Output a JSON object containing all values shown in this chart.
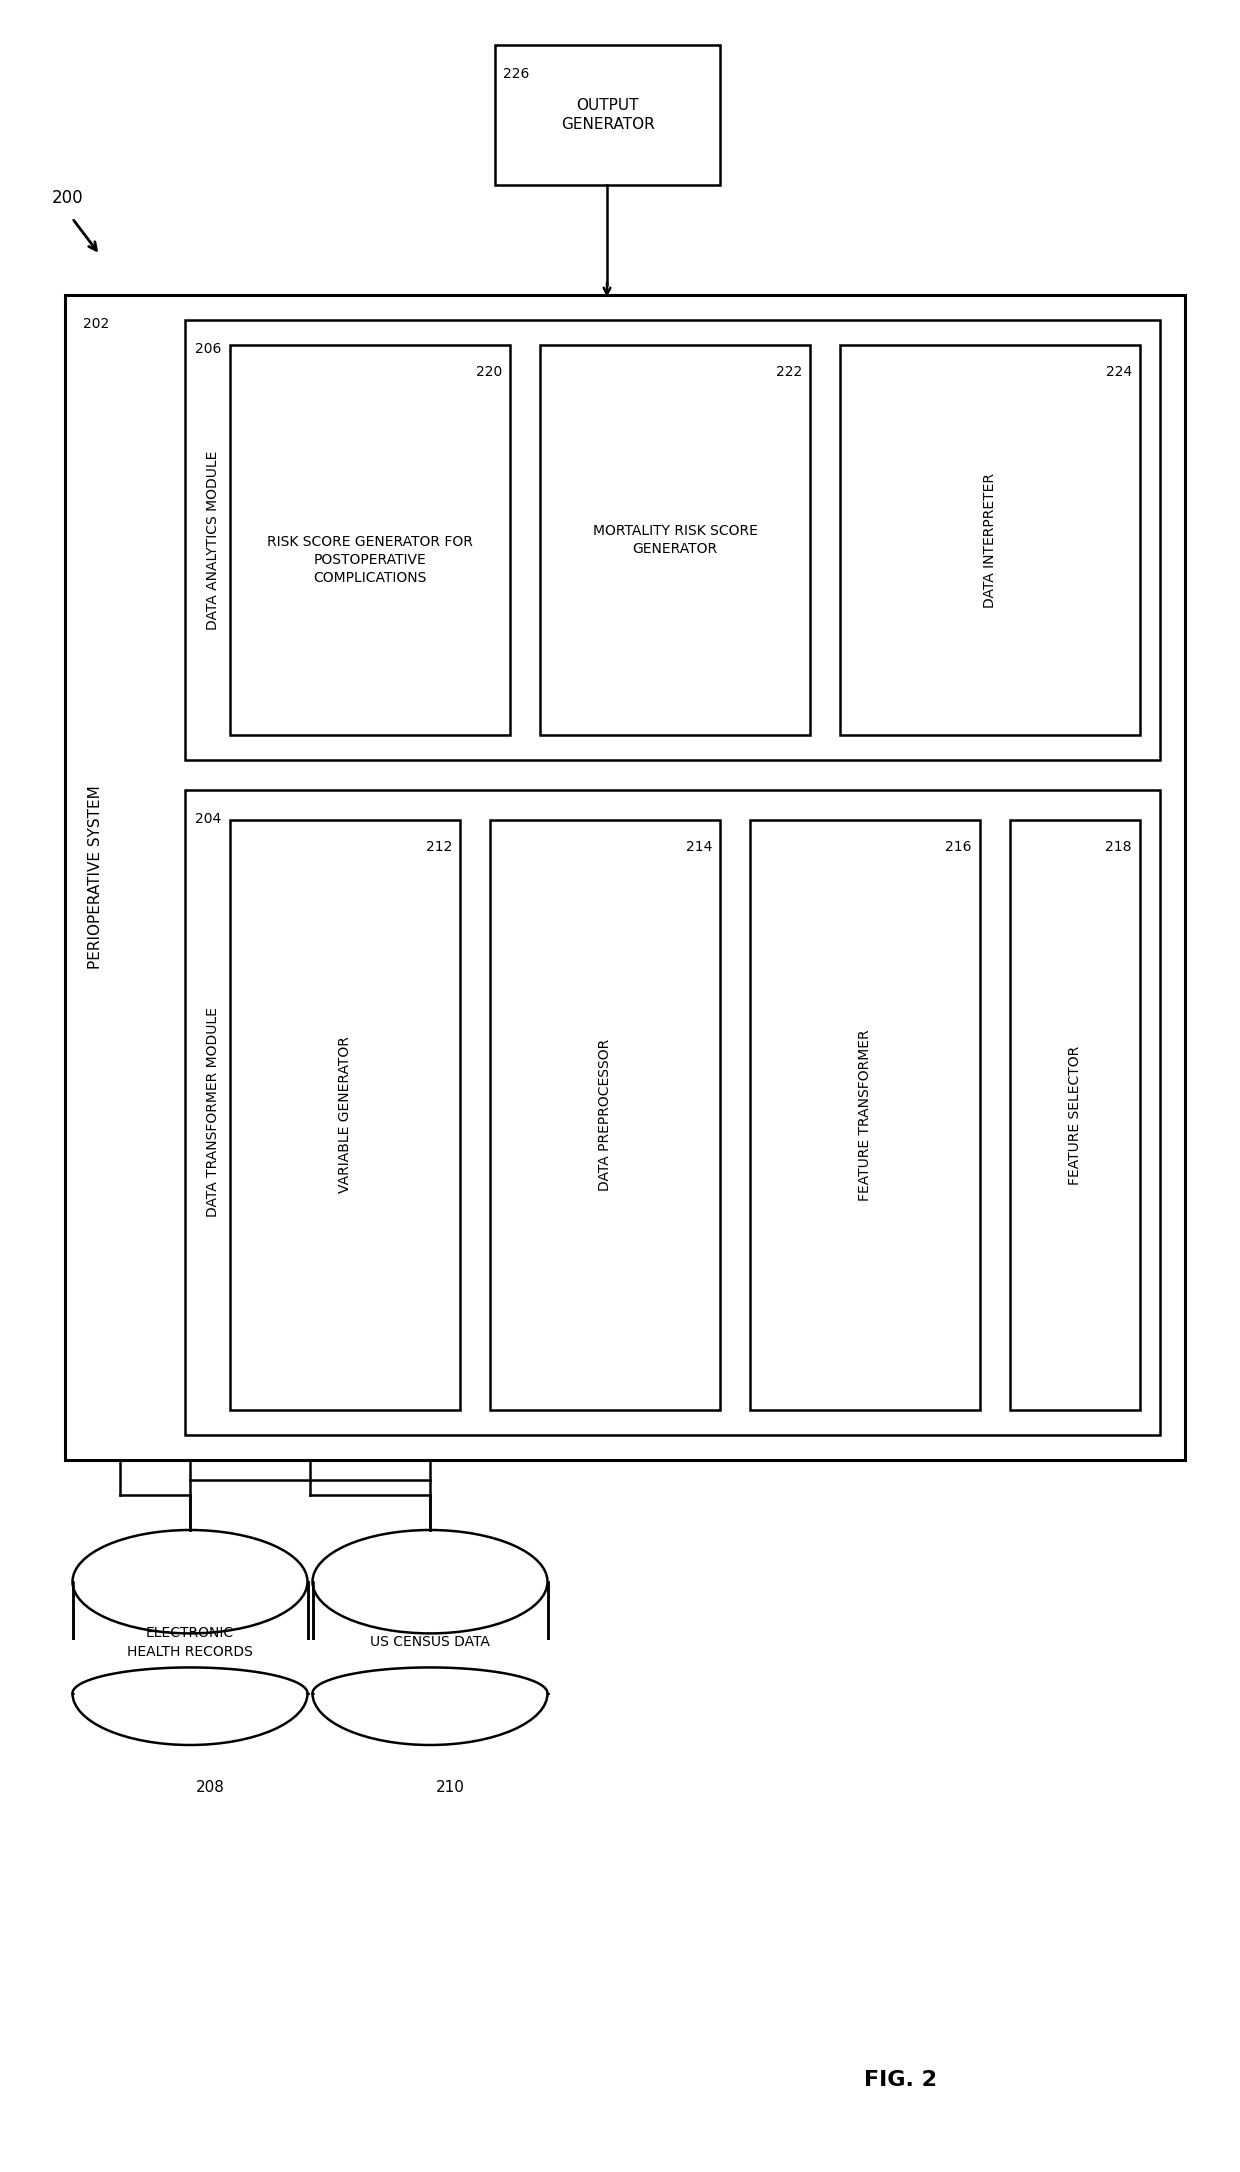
{
  "background_color": "#ffffff",
  "fig_width": 12.4,
  "fig_height": 21.72,
  "title": "FIG. 2",
  "label_200": "200",
  "label_202": "202",
  "label_204": "204",
  "label_206": "206",
  "label_208": "208",
  "label_210": "210",
  "label_212": "212",
  "label_214": "214",
  "label_216": "216",
  "label_218": "218",
  "label_220": "220",
  "label_222": "222",
  "label_224": "224",
  "label_226": "226",
  "text_output_generator": "OUTPUT\nGENERATOR",
  "text_perioperative": "PERIOPERATIVE SYSTEM",
  "text_data_analytics": "DATA ANALYTICS MODULE",
  "text_data_transformer": "DATA TRANSFORMER MODULE",
  "text_risk_score": "RISK SCORE GENERATOR FOR\nPOSTOPERATIVE\nCOMPLICATIONS",
  "text_mortality": "MORTALITY RISK SCORE\nGENERATOR",
  "text_data_interpreter": "DATA INTERPRETER",
  "text_variable_generator": "VARIABLE GENERATOR",
  "text_data_preprocessor": "DATA PREPROCESSOR",
  "text_feature_transformer": "FEATURE TRANSFORMER",
  "text_feature_selector": "FEATURE SELECTOR",
  "text_ehr": "ELECTRONIC\nHEALTH RECORDS",
  "text_census": "US CENSUS DATA",
  "line_color": "#000000",
  "fill_color": "#ffffff",
  "font_size_small": 9,
  "font_size_med": 10,
  "font_size_large": 13,
  "font_size_fig": 16
}
